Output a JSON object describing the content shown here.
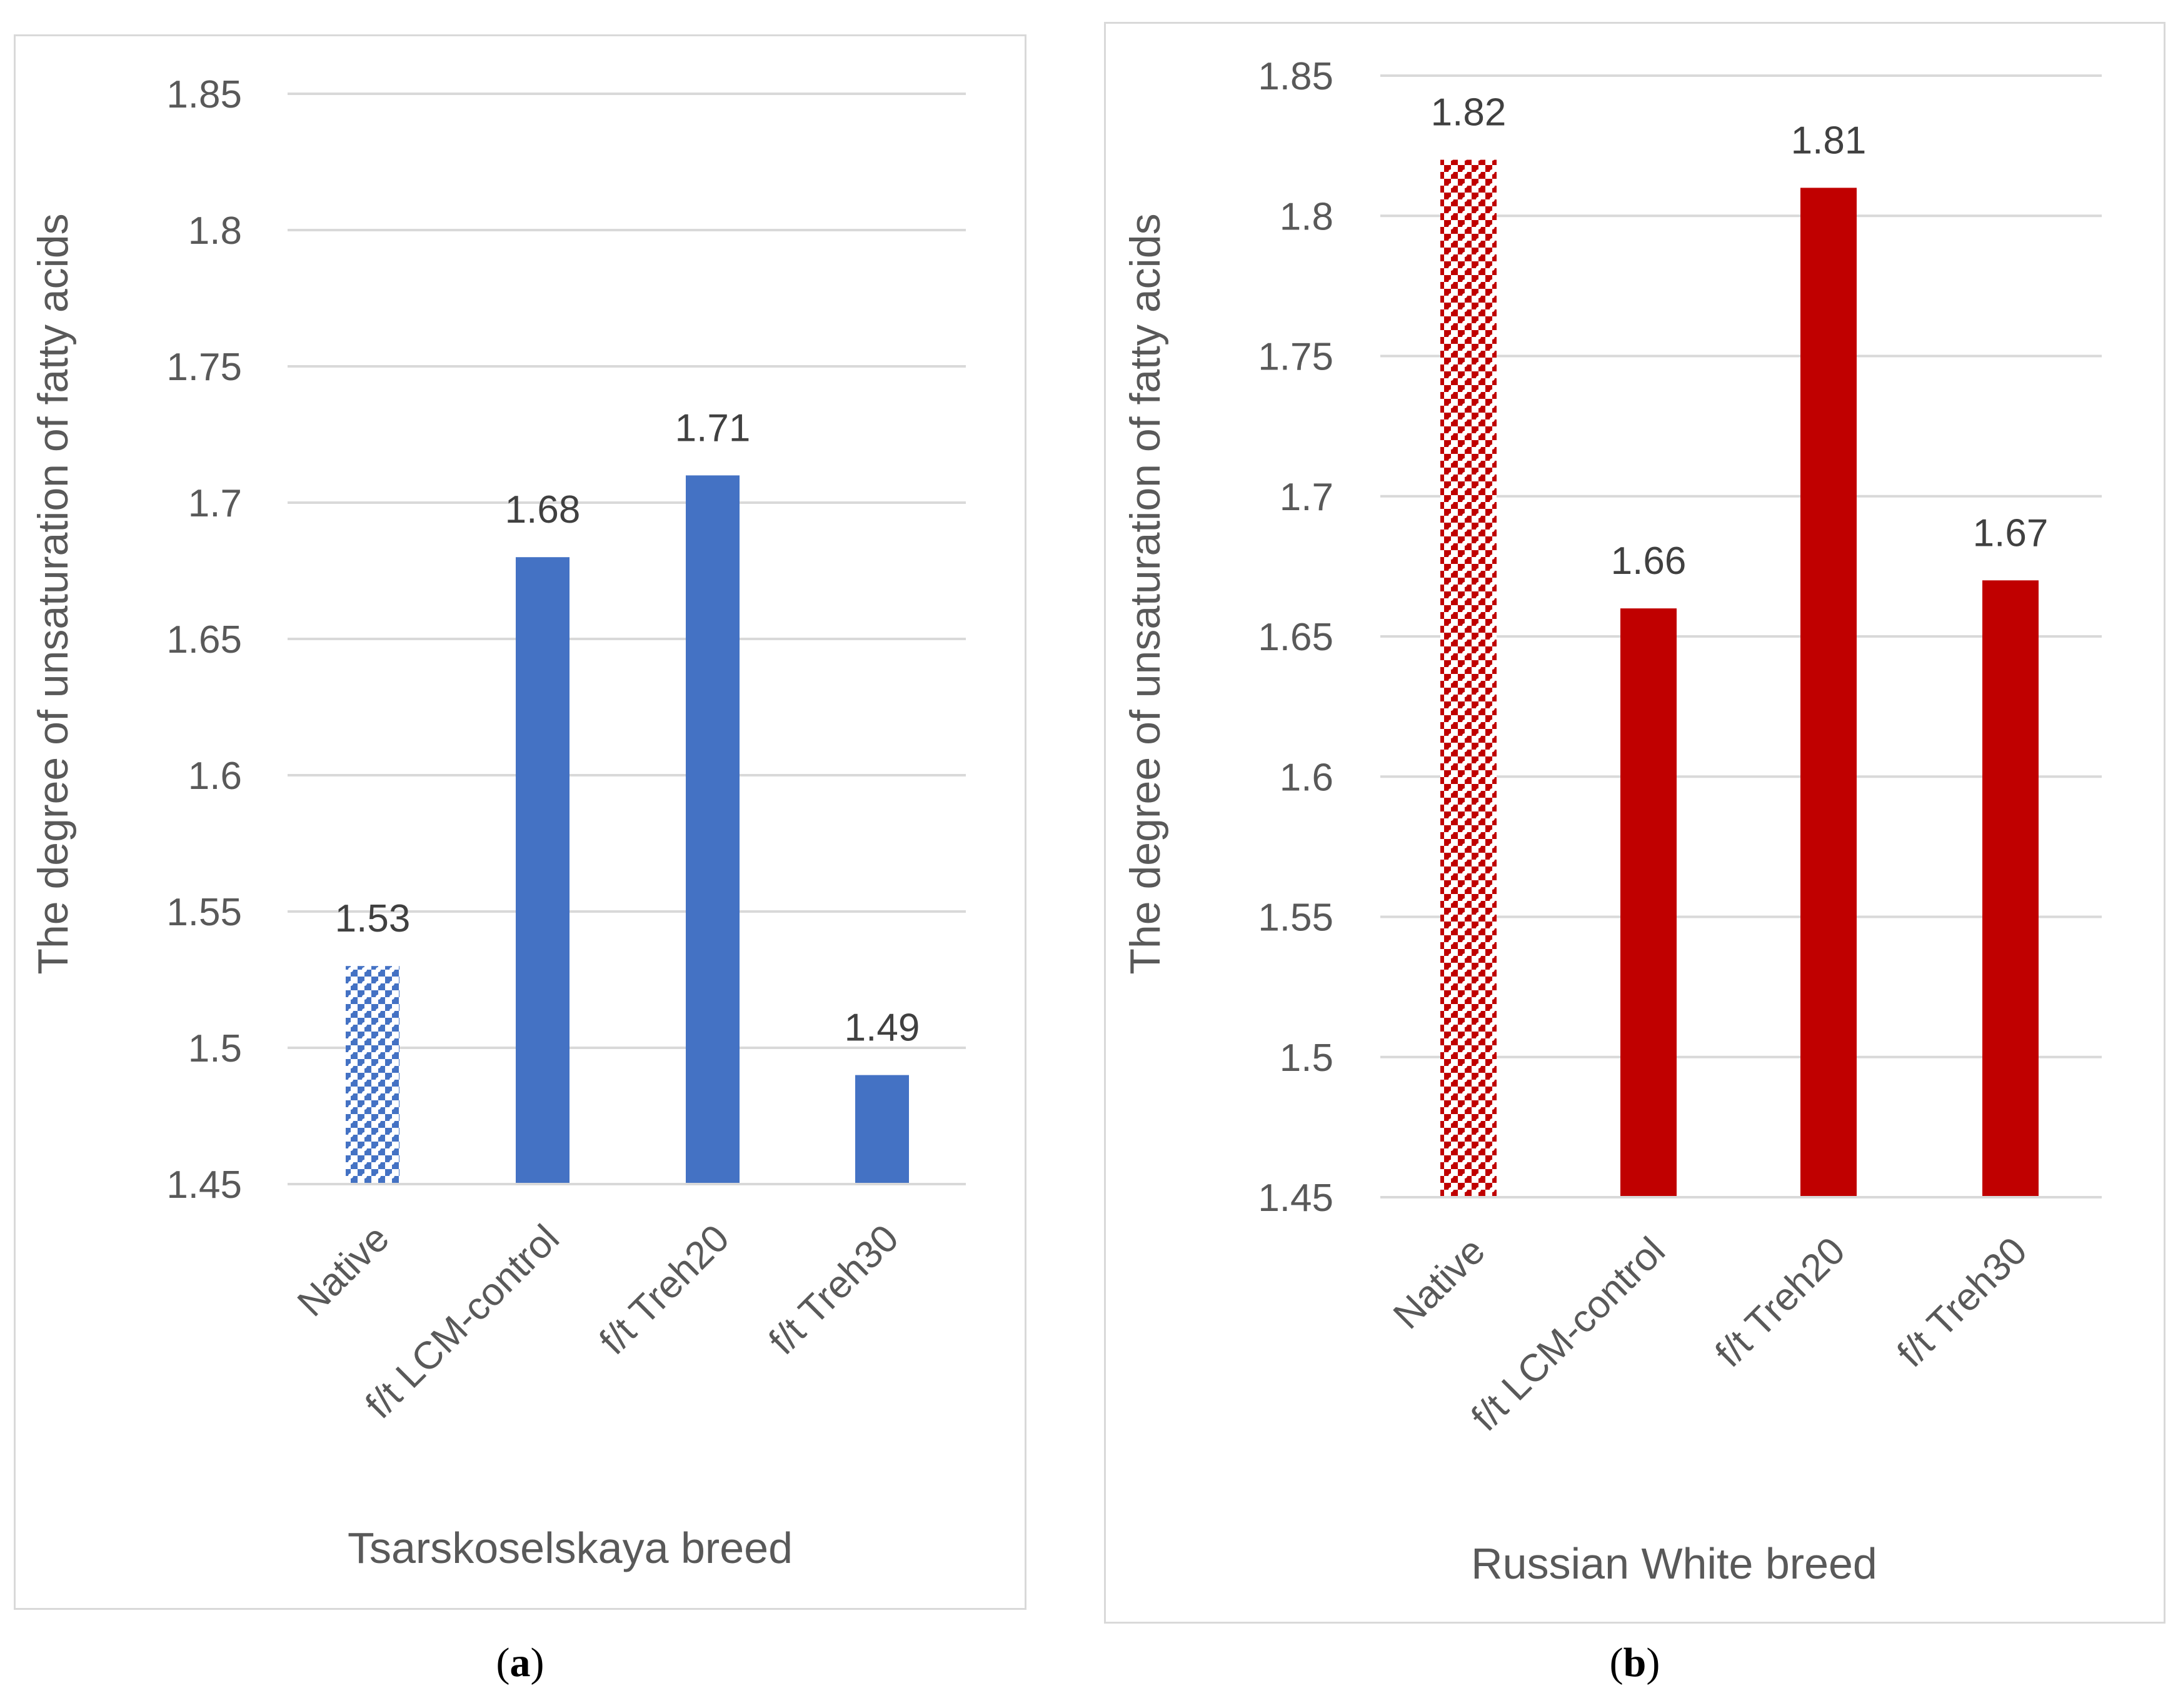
{
  "chart_data": [
    {
      "type": "bar",
      "panel": "a",
      "panel_label": "a",
      "title": "",
      "xlabel": "Tsarskoselskaya breed",
      "ylabel": "The degree of unsaturation of fatty acids",
      "categories": [
        "Native",
        "f/t LCM-control",
        "f/t Treh20",
        "f/t Treh30"
      ],
      "values": [
        1.53,
        1.68,
        1.71,
        1.49
      ],
      "data_labels": [
        "1.53",
        "1.68",
        "1.71",
        "1.49"
      ],
      "patterned": [
        true,
        false,
        false,
        false
      ],
      "ylim": [
        1.45,
        1.85
      ],
      "yticks": [
        1.45,
        1.5,
        1.55,
        1.6,
        1.65,
        1.7,
        1.75,
        1.8,
        1.85
      ],
      "ytick_labels": [
        "1.45",
        "1.5",
        "1.55",
        "1.6",
        "1.65",
        "1.7",
        "1.75",
        "1.8",
        "1.85"
      ],
      "color": "#4472c4",
      "grid": true,
      "legend": "none"
    },
    {
      "type": "bar",
      "panel": "b",
      "panel_label": "b",
      "title": "",
      "xlabel": "Russian White breed",
      "ylabel": "The degree of unsaturation of fatty acids",
      "categories": [
        "Native",
        "f/t LCM-control",
        "f/t Treh20",
        "f/t Treh30"
      ],
      "values": [
        1.82,
        1.66,
        1.81,
        1.67
      ],
      "data_labels": [
        "1.82",
        "1.66",
        "1.81",
        "1.67"
      ],
      "patterned": [
        true,
        false,
        false,
        false
      ],
      "ylim": [
        1.45,
        1.85
      ],
      "yticks": [
        1.45,
        1.5,
        1.55,
        1.6,
        1.65,
        1.7,
        1.75,
        1.8,
        1.85
      ],
      "ytick_labels": [
        "1.45",
        "1.5",
        "1.55",
        "1.6",
        "1.65",
        "1.7",
        "1.75",
        "1.8",
        "1.85"
      ],
      "color": "#c00000",
      "grid": true,
      "legend": "none"
    }
  ]
}
